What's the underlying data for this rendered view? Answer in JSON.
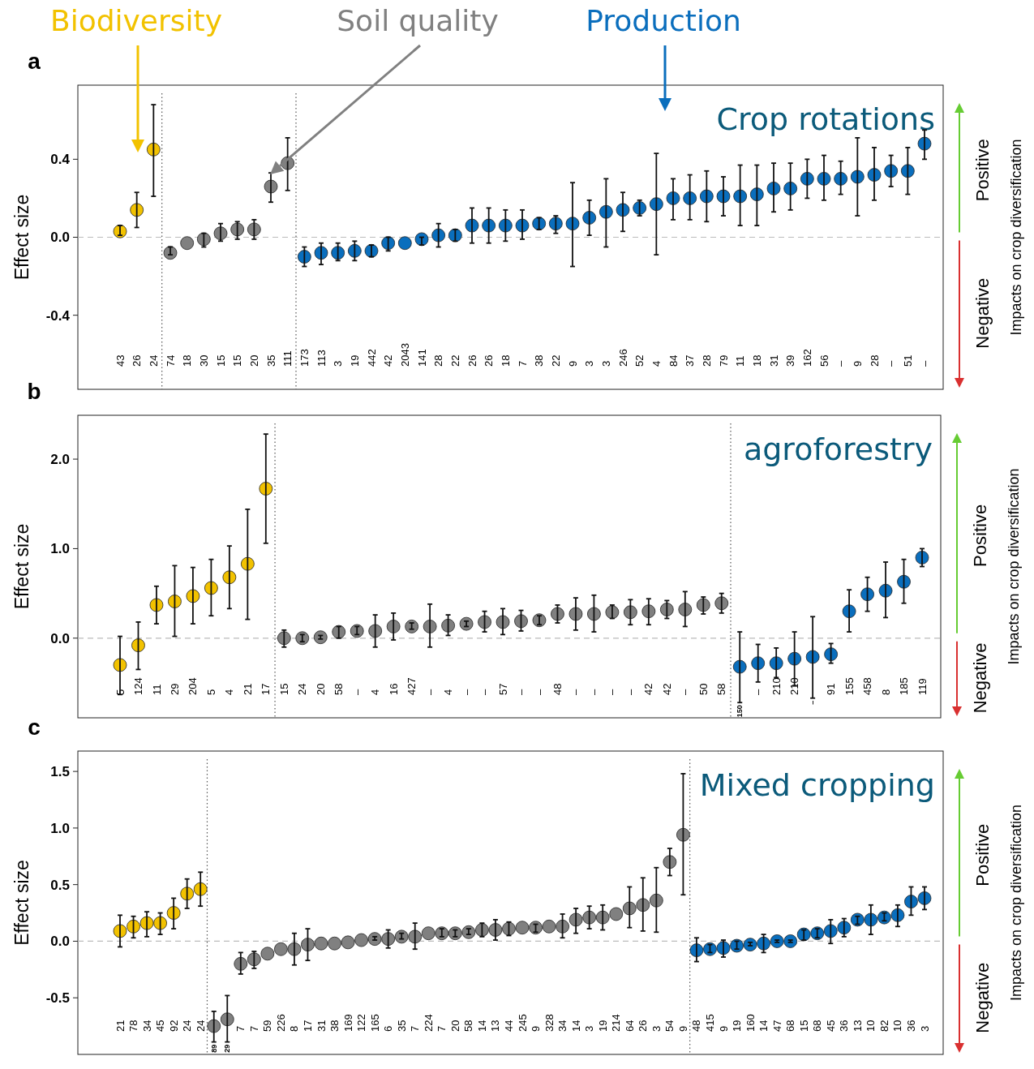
{
  "chart_data": [
    {
      "type": "scatter",
      "title": "a",
      "subtitle": "Crop rotations",
      "ylabel": "Effect size",
      "y2label": "Impacts on crop diversification",
      "annotations": [
        "Positive",
        "Negative"
      ],
      "marker": "circle",
      "categories": [
        "43",
        "26",
        "24",
        "74",
        "18",
        "30",
        "15",
        "15",
        "20",
        "35",
        "111",
        "173",
        "113",
        "3",
        "19",
        "442",
        "42",
        "2043",
        "141",
        "28",
        "22",
        "26",
        "26",
        "18",
        "7",
        "38",
        "22",
        "9",
        "3",
        "3",
        "246",
        "52",
        "4",
        "84",
        "37",
        "28",
        "79",
        "11",
        "18",
        "31",
        "39",
        "162",
        "56",
        "–",
        "9",
        "28",
        "–",
        "51",
        "–"
      ],
      "ylim": [
        -0.78,
        0.78
      ],
      "yticks": [
        {
          "value": -0.4,
          "label": "-0.4"
        },
        {
          "value": 0,
          "label": "0.0"
        },
        {
          "value": 0.4,
          "label": "0.4"
        }
      ],
      "ref_lines": [
        {
          "axis": "y",
          "value": 0,
          "line_style": "dashed",
          "color": "#bbbbbb"
        }
      ],
      "series": [
        {
          "name": "Biodiversity",
          "color": "#f2c200",
          "values": [
            0.03,
            0.14,
            0.45,
            null,
            null,
            null,
            null,
            null,
            null,
            null,
            null,
            null,
            null,
            null,
            null,
            null,
            null,
            null,
            null,
            null,
            null,
            null,
            null,
            null,
            null,
            null,
            null,
            null,
            null,
            null,
            null,
            null,
            null,
            null,
            null,
            null,
            null,
            null,
            null,
            null,
            null,
            null,
            null,
            null,
            null,
            null,
            null,
            null,
            null
          ],
          "errors": [
            [
              0.01,
              0.06
            ],
            [
              0.05,
              0.23
            ],
            [
              0.21,
              0.68
            ],
            null,
            null,
            null,
            null,
            null,
            null,
            null,
            null,
            null,
            null,
            null,
            null,
            null,
            null,
            null,
            null,
            null,
            null,
            null,
            null,
            null,
            null,
            null,
            null,
            null,
            null,
            null,
            null,
            null,
            null,
            null,
            null,
            null,
            null,
            null,
            null,
            null,
            null,
            null,
            null,
            null,
            null,
            null,
            null,
            null,
            null
          ]
        },
        {
          "name": "Soil quality",
          "color": "#808080",
          "values": [
            null,
            null,
            null,
            -0.08,
            -0.03,
            -0.01,
            0.02,
            0.04,
            0.04,
            0.26,
            0.38,
            null,
            null,
            null,
            null,
            null,
            null,
            null,
            null,
            null,
            null,
            null,
            null,
            null,
            null,
            null,
            null,
            null,
            null,
            null,
            null,
            null,
            null,
            null,
            null,
            null,
            null,
            null,
            null,
            null,
            null,
            null,
            null,
            null,
            null,
            null,
            null,
            null,
            null
          ],
          "errors": [
            null,
            null,
            null,
            [
              -0.09,
              -0.05
            ],
            null,
            [
              -0.05,
              0.02
            ],
            [
              -0.02,
              0.07
            ],
            [
              -0.01,
              0.08
            ],
            [
              -0.01,
              0.09
            ],
            [
              0.18,
              0.33
            ],
            [
              0.24,
              0.51
            ],
            null,
            null,
            null,
            null,
            null,
            null,
            null,
            null,
            null,
            null,
            null,
            null,
            null,
            null,
            null,
            null,
            null,
            null,
            null,
            null,
            null,
            null,
            null,
            null,
            null,
            null,
            null,
            null,
            null,
            null,
            null,
            null,
            null,
            null,
            null,
            null,
            null,
            null
          ]
        },
        {
          "name": "Production",
          "color": "#0a6ebd",
          "values": [
            null,
            null,
            null,
            null,
            null,
            null,
            null,
            null,
            null,
            null,
            null,
            -0.1,
            -0.08,
            -0.08,
            -0.07,
            -0.07,
            -0.03,
            -0.03,
            -0.01,
            0.01,
            0.01,
            0.06,
            0.06,
            0.06,
            0.06,
            0.07,
            0.07,
            0.07,
            0.1,
            0.13,
            0.14,
            0.15,
            0.17,
            0.2,
            0.2,
            0.21,
            0.21,
            0.21,
            0.22,
            0.25,
            0.25,
            0.3,
            0.3,
            0.3,
            0.31,
            0.32,
            0.34,
            0.34,
            0.48
          ],
          "errors": [
            null,
            null,
            null,
            null,
            null,
            null,
            null,
            null,
            null,
            null,
            null,
            [
              -0.15,
              -0.05
            ],
            [
              -0.14,
              -0.03
            ],
            [
              -0.12,
              -0.03
            ],
            [
              -0.12,
              -0.02
            ],
            [
              -0.1,
              -0.04
            ],
            [
              -0.07,
              0.0
            ],
            null,
            [
              -0.04,
              0.0
            ],
            [
              -0.05,
              0.07
            ],
            [
              -0.02,
              0.04
            ],
            [
              -0.03,
              0.15
            ],
            [
              -0.03,
              0.15
            ],
            [
              -0.02,
              0.14
            ],
            [
              -0.01,
              0.14
            ],
            [
              0.04,
              0.1
            ],
            [
              0.02,
              0.11
            ],
            [
              -0.15,
              0.28
            ],
            [
              0.01,
              0.19
            ],
            [
              -0.05,
              0.3
            ],
            [
              0.03,
              0.23
            ],
            [
              0.11,
              0.19
            ],
            [
              -0.09,
              0.43
            ],
            [
              0.09,
              0.3
            ],
            [
              0.09,
              0.32
            ],
            [
              0.08,
              0.34
            ],
            [
              0.11,
              0.31
            ],
            [
              0.06,
              0.37
            ],
            [
              0.06,
              0.37
            ],
            [
              0.13,
              0.38
            ],
            [
              0.14,
              0.38
            ],
            [
              0.2,
              0.4
            ],
            [
              0.19,
              0.42
            ],
            [
              0.22,
              0.39
            ],
            [
              0.11,
              0.51
            ],
            [
              0.19,
              0.46
            ],
            [
              0.26,
              0.42
            ],
            [
              0.22,
              0.46
            ],
            [
              0.4,
              0.55
            ]
          ]
        }
      ]
    },
    {
      "type": "scatter",
      "title": "b",
      "subtitle": "agroforestry",
      "ylabel": "Effect size",
      "y2label": "Impacts on crop diversification",
      "annotations": [
        "Positive",
        "Negative"
      ],
      "marker": "circle",
      "categories": [
        "5",
        "124",
        "11",
        "29",
        "204",
        "5",
        "4",
        "21",
        "17",
        "15",
        "24",
        "20",
        "58",
        "–",
        "4",
        "16",
        "427",
        "–",
        "4",
        "–",
        "–",
        "57",
        "–",
        "–",
        "48",
        "–",
        "–",
        "–",
        "–",
        "42",
        "42",
        "–",
        "50",
        "58",
        "150",
        "–",
        "210",
        "210",
        "–",
        "91",
        "155",
        "458",
        "8",
        "185",
        "119"
      ],
      "ylim": [
        -0.89,
        2.49
      ],
      "yticks": [
        {
          "value": 0,
          "label": "0.0"
        },
        {
          "value": 1,
          "label": "1.0"
        },
        {
          "value": 2,
          "label": "2.0"
        }
      ],
      "ref_lines": [
        {
          "axis": "y",
          "value": 0,
          "line_style": "dashed",
          "color": "#bbbbbb"
        }
      ],
      "series": [
        {
          "color": "#f2c200",
          "values": [
            -0.3,
            -0.08,
            0.37,
            0.41,
            0.47,
            0.56,
            0.68,
            0.83,
            1.67,
            null,
            null,
            null,
            null,
            null,
            null,
            null,
            null,
            null,
            null,
            null,
            null,
            null,
            null,
            null,
            null,
            null,
            null,
            null,
            null,
            null,
            null,
            null,
            null,
            null,
            null,
            null,
            null,
            null,
            null,
            null,
            null,
            null,
            null,
            null,
            null
          ],
          "errors": [
            [
              -0.63,
              0.02
            ],
            [
              -0.35,
              0.18
            ],
            [
              0.16,
              0.58
            ],
            [
              0.02,
              0.81
            ],
            [
              0.16,
              0.79
            ],
            [
              0.25,
              0.88
            ],
            [
              0.33,
              1.03
            ],
            [
              0.21,
              1.44
            ],
            [
              1.06,
              2.28
            ],
            null,
            null,
            null,
            null,
            null,
            null,
            null,
            null,
            null,
            null,
            null,
            null,
            null,
            null,
            null,
            null,
            null,
            null,
            null,
            null,
            null,
            null,
            null,
            null,
            null,
            null,
            null,
            null,
            null,
            null,
            null,
            null,
            null,
            null,
            null,
            null
          ]
        },
        {
          "color": "#808080",
          "values": [
            null,
            null,
            null,
            null,
            null,
            null,
            null,
            null,
            null,
            0.0,
            0.0,
            0.01,
            0.07,
            0.08,
            0.08,
            0.13,
            0.13,
            0.13,
            0.14,
            0.16,
            0.18,
            0.18,
            0.19,
            0.2,
            0.27,
            0.27,
            0.27,
            0.29,
            0.29,
            0.3,
            0.32,
            0.32,
            0.37,
            0.39,
            null,
            null,
            null,
            null,
            null,
            null,
            null,
            null,
            null,
            null,
            null
          ],
          "errors": [
            null,
            null,
            null,
            null,
            null,
            null,
            null,
            null,
            null,
            [
              -0.1,
              0.09
            ],
            [
              -0.04,
              0.04
            ],
            [
              -0.01,
              0.03
            ],
            [
              0.0,
              0.13
            ],
            [
              0.04,
              0.13
            ],
            [
              -0.1,
              0.26
            ],
            [
              -0.02,
              0.28
            ],
            [
              0.1,
              0.17
            ],
            [
              -0.1,
              0.38
            ],
            [
              0.03,
              0.26
            ],
            [
              0.13,
              0.19
            ],
            [
              0.07,
              0.3
            ],
            [
              0.04,
              0.33
            ],
            [
              0.08,
              0.31
            ],
            [
              0.15,
              0.25
            ],
            [
              0.17,
              0.37
            ],
            [
              0.09,
              0.45
            ],
            [
              0.07,
              0.48
            ],
            [
              0.22,
              0.37
            ],
            [
              0.15,
              0.43
            ],
            [
              0.15,
              0.44
            ],
            [
              0.22,
              0.42
            ],
            [
              0.13,
              0.52
            ],
            [
              0.27,
              0.46
            ],
            [
              0.28,
              0.5
            ],
            null,
            null,
            null,
            null,
            null,
            null,
            null,
            null,
            null,
            null,
            null
          ]
        },
        {
          "color": "#0a6ebd",
          "values": [
            null,
            null,
            null,
            null,
            null,
            null,
            null,
            null,
            null,
            null,
            null,
            null,
            null,
            null,
            null,
            null,
            null,
            null,
            null,
            null,
            null,
            null,
            null,
            null,
            null,
            null,
            null,
            null,
            null,
            null,
            null,
            null,
            null,
            null,
            -0.32,
            -0.28,
            -0.28,
            -0.23,
            -0.21,
            -0.18,
            0.3,
            0.49,
            0.53,
            0.63,
            0.9
          ],
          "errors": [
            null,
            null,
            null,
            null,
            null,
            null,
            null,
            null,
            null,
            null,
            null,
            null,
            null,
            null,
            null,
            null,
            null,
            null,
            null,
            null,
            null,
            null,
            null,
            null,
            null,
            null,
            null,
            null,
            null,
            null,
            null,
            null,
            null,
            null,
            [
              -0.72,
              0.07
            ],
            [
              -0.49,
              -0.07
            ],
            [
              -0.44,
              -0.11
            ],
            [
              -0.53,
              0.07
            ],
            [
              -0.67,
              0.24
            ],
            [
              -0.28,
              -0.06
            ],
            [
              0.07,
              0.54
            ],
            [
              0.3,
              0.68
            ],
            [
              0.23,
              0.85
            ],
            [
              0.39,
              0.88
            ],
            [
              0.8,
              1.0
            ]
          ]
        }
      ]
    },
    {
      "type": "scatter",
      "title": "c",
      "subtitle": "Mixed cropping",
      "ylabel": "Effect size",
      "y2label": "Impacts on crop diversification",
      "annotations": [
        "Positive",
        "Negative"
      ],
      "marker": "circle",
      "categories": [
        "21",
        "78",
        "34",
        "45",
        "92",
        "24",
        "24",
        "89",
        "29",
        "7",
        "7",
        "59",
        "226",
        "8",
        "17",
        "31",
        "38",
        "169",
        "122",
        "165",
        "6",
        "35",
        "7",
        "224",
        "7",
        "20",
        "58",
        "14",
        "13",
        "44",
        "245",
        "9",
        "328",
        "34",
        "14",
        "3",
        "19",
        "214",
        "64",
        "26",
        "3",
        "54",
        "9",
        "48",
        "415",
        "9",
        "19",
        "160",
        "14",
        "47",
        "68",
        "15",
        "68",
        "45",
        "36",
        "13",
        "10",
        "82",
        "10",
        "36",
        "3"
      ],
      "ylim": [
        -1.0,
        1.68
      ],
      "yticks": [
        {
          "value": -0.5,
          "label": "-0.5"
        },
        {
          "value": 0,
          "label": "0.0"
        },
        {
          "value": 0.5,
          "label": "0.5"
        },
        {
          "value": 1,
          "label": "1.0"
        },
        {
          "value": 1.5,
          "label": "1.5"
        }
      ],
      "ref_lines": [
        {
          "axis": "y",
          "value": 0,
          "line_style": "dashed",
          "color": "#bbbbbb"
        }
      ],
      "series": [
        {
          "color": "#f2c200",
          "values": [
            0.09,
            0.13,
            0.16,
            0.16,
            0.25,
            0.42,
            0.46,
            null,
            null,
            null,
            null,
            null,
            null,
            null,
            null,
            null,
            null,
            null,
            null,
            null,
            null,
            null,
            null,
            null,
            null,
            null,
            null,
            null,
            null,
            null,
            null,
            null,
            null,
            null,
            null,
            null,
            null,
            null,
            null,
            null,
            null,
            null,
            null,
            null,
            null,
            null,
            null,
            null,
            null,
            null,
            null,
            null,
            null,
            null,
            null,
            null,
            null,
            null,
            null,
            null,
            null
          ],
          "errors": [
            [
              -0.05,
              0.23
            ],
            [
              0.03,
              0.22
            ],
            [
              0.04,
              0.26
            ],
            [
              0.06,
              0.25
            ],
            [
              0.11,
              0.38
            ],
            [
              0.29,
              0.55
            ],
            [
              0.31,
              0.61
            ],
            null,
            null,
            null,
            null,
            null,
            null,
            null,
            null,
            null,
            null,
            null,
            null,
            null,
            null,
            null,
            null,
            null,
            null,
            null,
            null,
            null,
            null,
            null,
            null,
            null,
            null,
            null,
            null,
            null,
            null,
            null,
            null,
            null,
            null,
            null,
            null,
            null,
            null,
            null,
            null,
            null,
            null,
            null,
            null,
            null,
            null,
            null,
            null,
            null,
            null,
            null,
            null,
            null,
            null
          ]
        },
        {
          "color": "#808080",
          "values": [
            null,
            null,
            null,
            null,
            null,
            null,
            null,
            -0.75,
            -0.69,
            -0.2,
            -0.16,
            -0.11,
            -0.07,
            -0.07,
            -0.03,
            -0.02,
            -0.02,
            -0.01,
            0.01,
            0.02,
            0.02,
            0.04,
            0.04,
            0.07,
            0.07,
            0.07,
            0.08,
            0.1,
            0.1,
            0.11,
            0.12,
            0.12,
            0.13,
            0.13,
            0.19,
            0.21,
            0.21,
            0.24,
            0.29,
            0.32,
            0.36,
            0.7,
            0.94,
            null,
            null,
            null,
            null,
            null,
            null,
            null,
            null,
            null,
            null,
            null,
            null,
            null,
            null,
            null,
            null,
            null,
            null
          ],
          "errors": [
            null,
            null,
            null,
            null,
            null,
            null,
            null,
            [
              -0.89,
              -0.62
            ],
            [
              -0.89,
              -0.48
            ],
            [
              -0.29,
              -0.1
            ],
            [
              -0.24,
              -0.09
            ],
            null,
            null,
            [
              -0.21,
              0.07
            ],
            [
              -0.17,
              0.11
            ],
            null,
            null,
            null,
            null,
            [
              0.01,
              0.04
            ],
            [
              -0.06,
              0.1
            ],
            [
              0.02,
              0.07
            ],
            [
              -0.07,
              0.16
            ],
            null,
            [
              0.04,
              0.11
            ],
            [
              0.04,
              0.1
            ],
            [
              0.06,
              0.11
            ],
            [
              0.04,
              0.16
            ],
            [
              0.01,
              0.19
            ],
            [
              0.05,
              0.17
            ],
            null,
            [
              0.08,
              0.15
            ],
            null,
            [
              0.03,
              0.24
            ],
            [
              0.07,
              0.29
            ],
            [
              0.11,
              0.31
            ],
            [
              0.1,
              0.32
            ],
            null,
            [
              0.12,
              0.48
            ],
            [
              0.09,
              0.56
            ],
            [
              0.08,
              0.65
            ],
            [
              0.58,
              0.82
            ],
            [
              0.41,
              1.48
            ],
            null,
            null,
            null,
            null,
            null,
            null,
            null,
            null,
            null,
            null,
            null,
            null,
            null,
            null,
            null,
            null,
            null,
            null
          ]
        },
        {
          "color": "#0a6ebd",
          "values": [
            null,
            null,
            null,
            null,
            null,
            null,
            null,
            null,
            null,
            null,
            null,
            null,
            null,
            null,
            null,
            null,
            null,
            null,
            null,
            null,
            null,
            null,
            null,
            null,
            null,
            null,
            null,
            null,
            null,
            null,
            null,
            null,
            null,
            null,
            null,
            null,
            null,
            null,
            null,
            null,
            null,
            null,
            null,
            -0.08,
            -0.07,
            -0.06,
            -0.04,
            -0.03,
            -0.02,
            0.0,
            0.0,
            0.06,
            0.07,
            0.09,
            0.12,
            0.19,
            0.19,
            0.21,
            0.23,
            0.35,
            0.38
          ],
          "errors": [
            null,
            null,
            null,
            null,
            null,
            null,
            null,
            null,
            null,
            null,
            null,
            null,
            null,
            null,
            null,
            null,
            null,
            null,
            null,
            null,
            null,
            null,
            null,
            null,
            null,
            null,
            null,
            null,
            null,
            null,
            null,
            null,
            null,
            null,
            null,
            null,
            null,
            null,
            null,
            null,
            null,
            null,
            null,
            [
              -0.18,
              0.03
            ],
            [
              -0.1,
              -0.03
            ],
            [
              -0.14,
              0.01
            ],
            [
              -0.07,
              0.0
            ],
            [
              -0.04,
              -0.01
            ],
            [
              -0.1,
              0.06
            ],
            [
              -0.01,
              0.01
            ],
            [
              -0.01,
              0.01
            ],
            [
              0.01,
              0.1
            ],
            [
              0.03,
              0.11
            ],
            [
              -0.02,
              0.19
            ],
            [
              0.04,
              0.2
            ],
            [
              0.15,
              0.22
            ],
            [
              0.06,
              0.32
            ],
            [
              0.18,
              0.25
            ],
            [
              0.13,
              0.32
            ],
            [
              0.23,
              0.48
            ],
            [
              0.28,
              0.48
            ]
          ]
        }
      ]
    }
  ]
}
